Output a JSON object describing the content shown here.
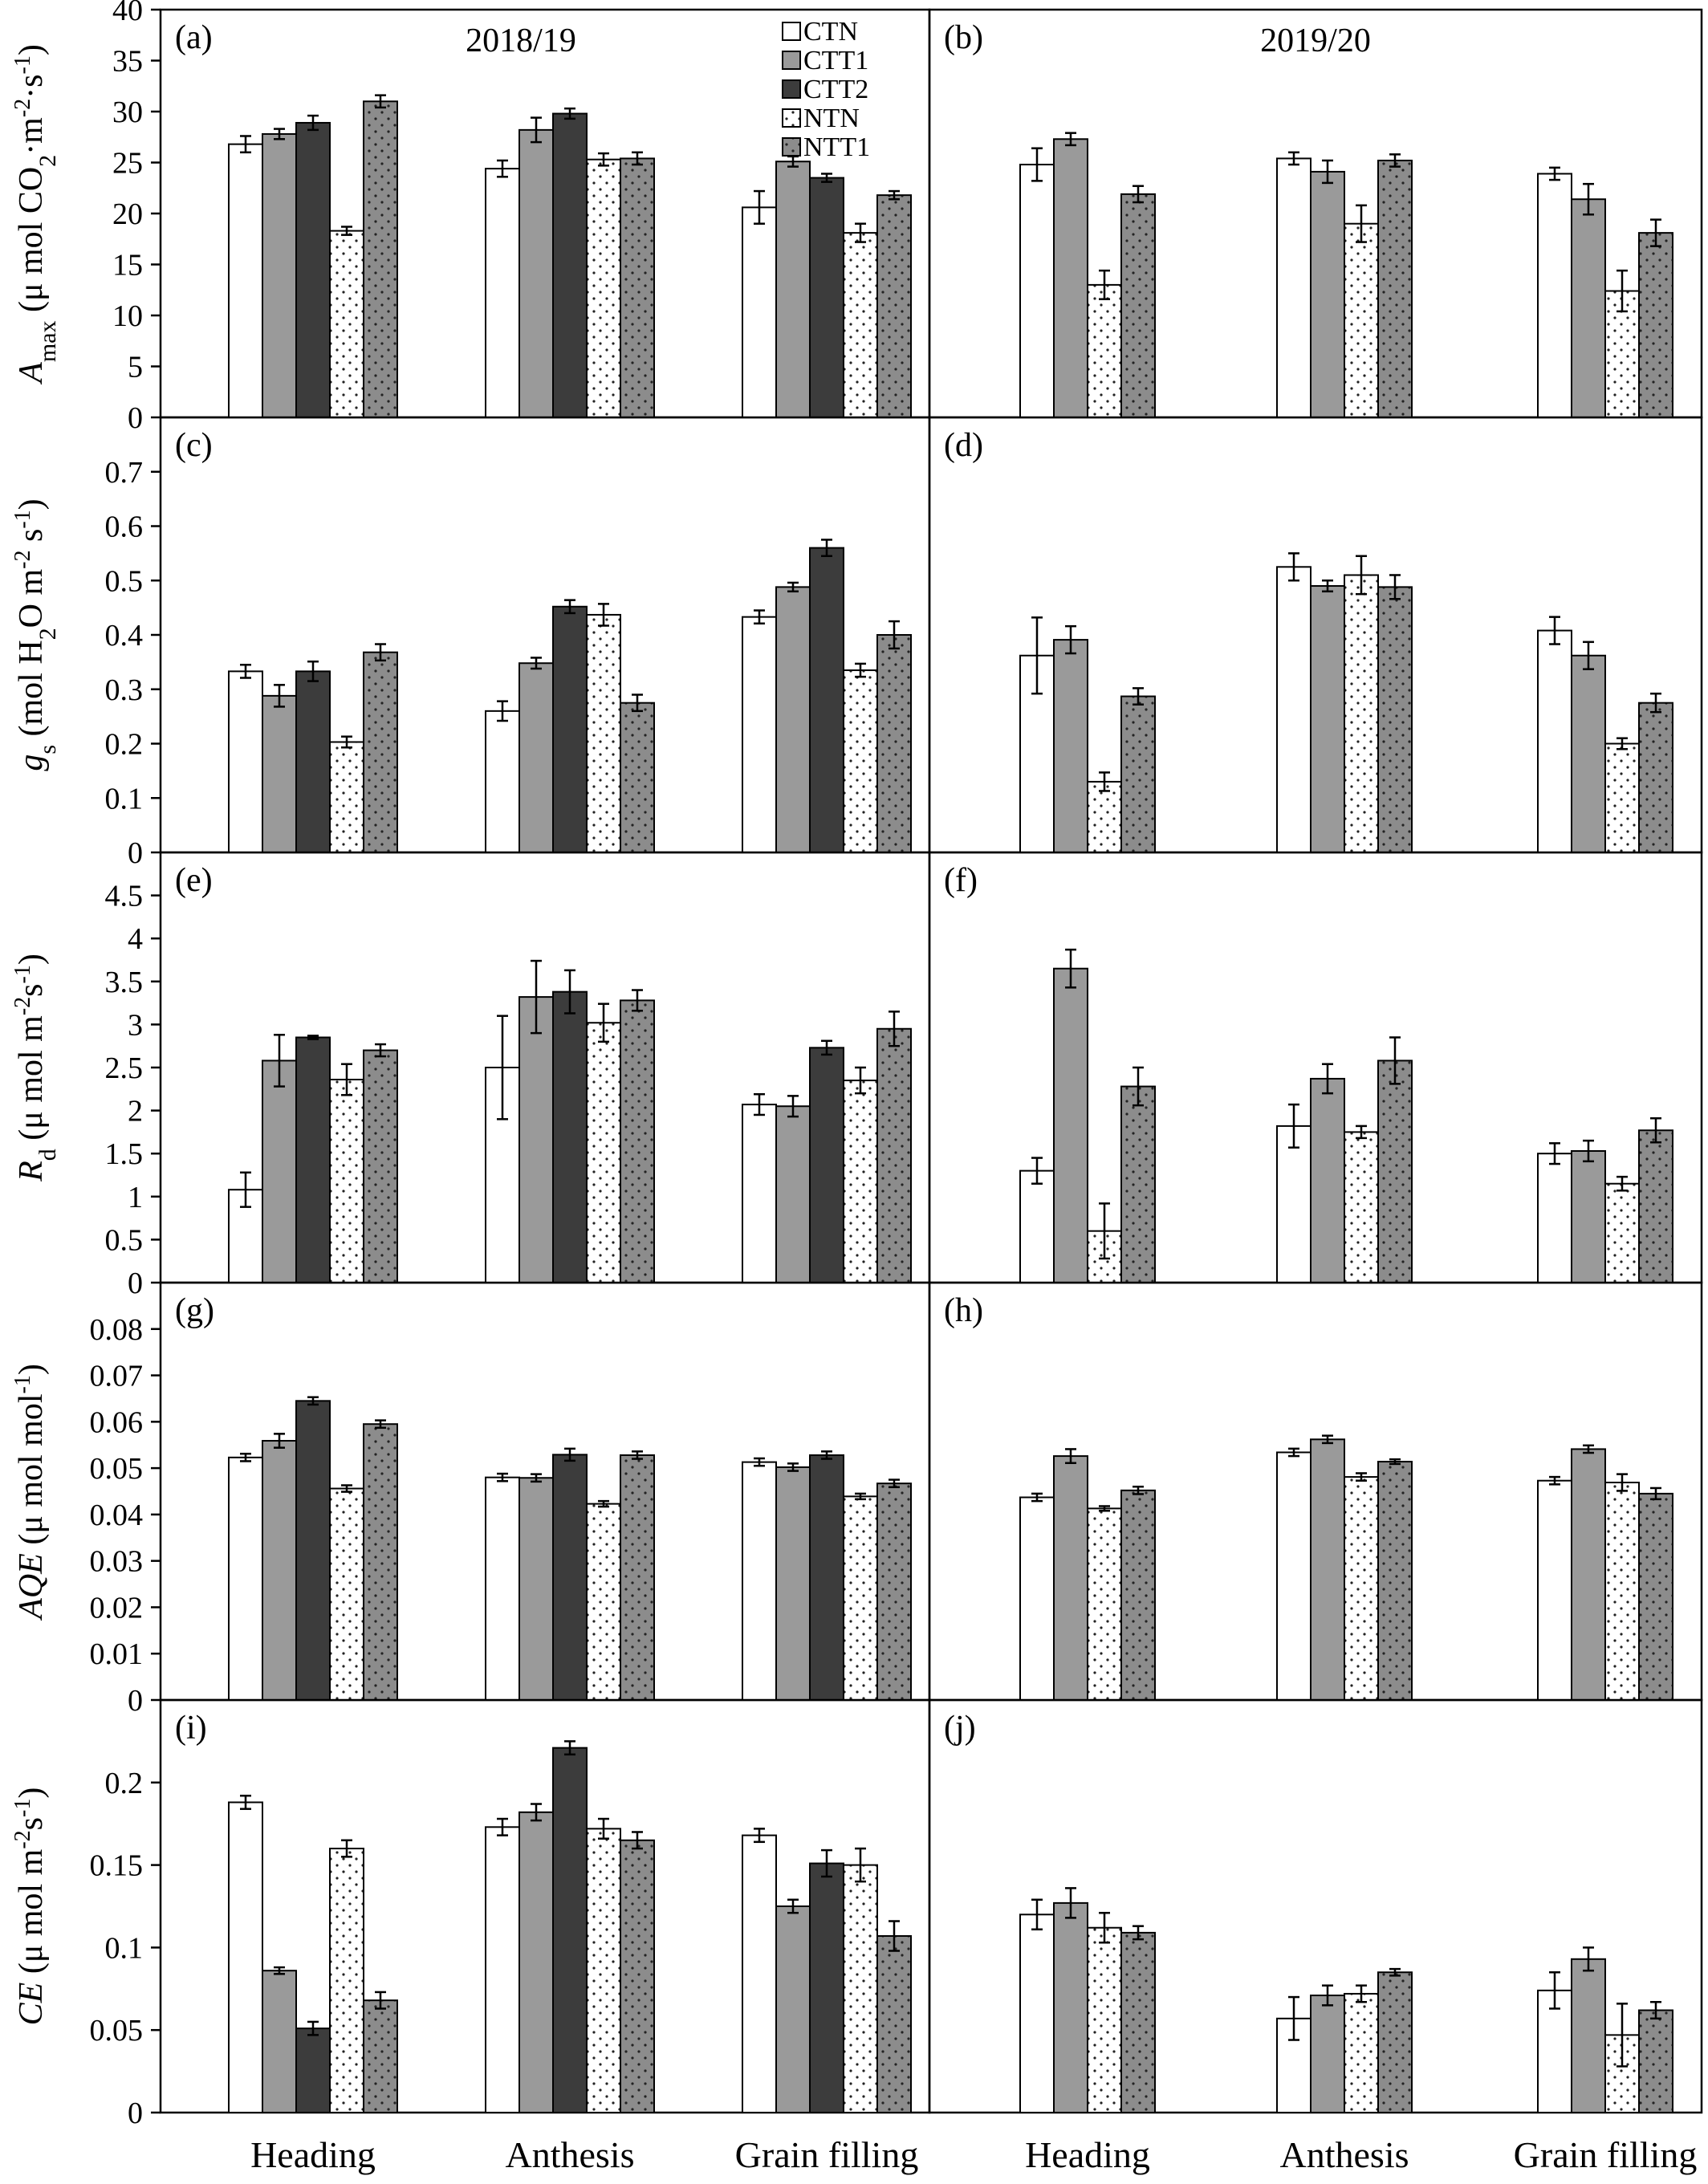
{
  "figure": {
    "categories": [
      "Heading",
      "Anthesis",
      "Grain filling"
    ],
    "legend": [
      "CTN",
      "CTT1",
      "CTT2",
      "NTN",
      "NTT1"
    ],
    "colors": {
      "CTN": "#ffffff",
      "CTT1": "#9a9a9a",
      "CTT2": "#3c3c3c",
      "NTN": "#ffffff",
      "NTT1": "#8c8c8c"
    },
    "seasons": [
      "2018/19",
      "2019/20"
    ]
  },
  "chart_data": [
    {
      "type": "bar",
      "panel": "(a)",
      "title": "2018/19",
      "ylabel": "Amax (μ mol CO2·m-2·s-1)",
      "ylabel_parts": {
        "main": "A",
        "sub": "max",
        "units": " (μ mol CO",
        "units_sub": "2",
        "units2": "·m",
        "units_sup": "-2",
        "units3": "·s",
        "units_sup2": "-1",
        "units4": ")"
      },
      "ylim": [
        0,
        40
      ],
      "yticks": [
        "0",
        "5",
        "10",
        "15",
        "20",
        "25",
        "30",
        "35",
        "40"
      ],
      "categories": [
        "Heading",
        "Anthesis",
        "Grain filling"
      ],
      "series": [
        {
          "name": "CTN",
          "values": [
            26.8,
            24.4,
            20.6
          ],
          "err": [
            0.8,
            0.8,
            1.6
          ]
        },
        {
          "name": "CTT1",
          "values": [
            27.8,
            28.2,
            25.1
          ],
          "err": [
            0.5,
            1.2,
            0.5
          ]
        },
        {
          "name": "CTT2",
          "values": [
            28.9,
            29.8,
            23.5
          ],
          "err": [
            0.7,
            0.5,
            0.4
          ]
        },
        {
          "name": "NTN",
          "values": [
            18.3,
            25.3,
            18.1
          ],
          "err": [
            0.4,
            0.6,
            0.9
          ]
        },
        {
          "name": "NTT1",
          "values": [
            31.0,
            25.4,
            21.8
          ],
          "err": [
            0.6,
            0.6,
            0.4
          ]
        }
      ]
    },
    {
      "type": "bar",
      "panel": "(b)",
      "title": "2019/20",
      "ylim": [
        0,
        40
      ],
      "categories": [
        "Heading",
        "Anthesis",
        "Grain filling"
      ],
      "series": [
        {
          "name": "CTN",
          "values": [
            24.8,
            25.4,
            23.9
          ],
          "err": [
            1.6,
            0.6,
            0.6
          ]
        },
        {
          "name": "CTT1",
          "values": [
            27.3,
            24.1,
            21.4
          ],
          "err": [
            0.6,
            1.1,
            1.5
          ]
        },
        {
          "name": "NTN",
          "values": [
            13.0,
            19.0,
            12.4
          ],
          "err": [
            1.4,
            1.8,
            2.0
          ]
        },
        {
          "name": "NTT1",
          "values": [
            21.9,
            25.2,
            18.1
          ],
          "err": [
            0.8,
            0.6,
            1.3
          ]
        }
      ]
    },
    {
      "type": "bar",
      "panel": "(c)",
      "ylabel": "gs (mol H2O m-2 s-1)",
      "ylabel_parts": {
        "main": "g",
        "sub": "s",
        "units": " (mol H",
        "units_sub": "2",
        "units2": "O m",
        "units_sup": "-2",
        "units3": " s",
        "units_sup2": "-1",
        "units4": ")"
      },
      "ylim": [
        0,
        0.8
      ],
      "yticks": [
        "0",
        "0.1",
        "0.2",
        "0.3",
        "0.4",
        "0.5",
        "0.6",
        "0.7"
      ],
      "categories": [
        "Heading",
        "Anthesis",
        "Grain filling"
      ],
      "series": [
        {
          "name": "CTN",
          "values": [
            0.333,
            0.26,
            0.433
          ],
          "err": [
            0.012,
            0.018,
            0.012
          ]
        },
        {
          "name": "CTT1",
          "values": [
            0.288,
            0.348,
            0.488
          ],
          "err": [
            0.02,
            0.01,
            0.008
          ]
        },
        {
          "name": "CTT2",
          "values": [
            0.333,
            0.452,
            0.56
          ],
          "err": [
            0.018,
            0.012,
            0.015
          ]
        },
        {
          "name": "NTN",
          "values": [
            0.203,
            0.437,
            0.335
          ],
          "err": [
            0.01,
            0.02,
            0.012
          ]
        },
        {
          "name": "NTT1",
          "values": [
            0.368,
            0.275,
            0.4
          ],
          "err": [
            0.015,
            0.015,
            0.025
          ]
        }
      ]
    },
    {
      "type": "bar",
      "panel": "(d)",
      "ylim": [
        0,
        0.8
      ],
      "categories": [
        "Heading",
        "Anthesis",
        "Grain filling"
      ],
      "series": [
        {
          "name": "CTN",
          "values": [
            0.362,
            0.525,
            0.408
          ],
          "err": [
            0.07,
            0.025,
            0.025
          ]
        },
        {
          "name": "CTT1",
          "values": [
            0.391,
            0.49,
            0.362
          ],
          "err": [
            0.025,
            0.01,
            0.025
          ]
        },
        {
          "name": "NTN",
          "values": [
            0.13,
            0.51,
            0.2
          ],
          "err": [
            0.017,
            0.035,
            0.01
          ]
        },
        {
          "name": "NTT1",
          "values": [
            0.287,
            0.488,
            0.275
          ],
          "err": [
            0.015,
            0.022,
            0.017
          ]
        }
      ]
    },
    {
      "type": "bar",
      "panel": "(e)",
      "ylabel": "Rd (μ mol m-2s-1)",
      "ylabel_parts": {
        "main": "R",
        "sub": "d",
        "units": " (μ mol m",
        "units_sub": "",
        "units2": "",
        "units_sup": "-2",
        "units3": "s",
        "units_sup2": "-1",
        "units4": ")"
      },
      "ylim": [
        0,
        5
      ],
      "yticks": [
        "0",
        "0.5",
        "1",
        "1.5",
        "2",
        "2.5",
        "3",
        "3.5",
        "4",
        "4.5"
      ],
      "categories": [
        "Heading",
        "Anthesis",
        "Grain filling"
      ],
      "series": [
        {
          "name": "CTN",
          "values": [
            1.08,
            2.5,
            2.07
          ],
          "err": [
            0.2,
            0.6,
            0.12
          ]
        },
        {
          "name": "CTT1",
          "values": [
            2.58,
            3.32,
            2.05
          ],
          "err": [
            0.3,
            0.42,
            0.12
          ]
        },
        {
          "name": "CTT2",
          "values": [
            2.85,
            3.38,
            2.73
          ],
          "err": [
            0.02,
            0.25,
            0.08
          ]
        },
        {
          "name": "NTN",
          "values": [
            2.36,
            3.02,
            2.35
          ],
          "err": [
            0.18,
            0.22,
            0.15
          ]
        },
        {
          "name": "NTT1",
          "values": [
            2.7,
            3.28,
            2.95
          ],
          "err": [
            0.07,
            0.12,
            0.2
          ]
        }
      ]
    },
    {
      "type": "bar",
      "panel": "(f)",
      "ylim": [
        0,
        5
      ],
      "categories": [
        "Heading",
        "Anthesis",
        "Grain filling"
      ],
      "series": [
        {
          "name": "CTN",
          "values": [
            1.3,
            1.82,
            1.5
          ],
          "err": [
            0.15,
            0.25,
            0.12
          ]
        },
        {
          "name": "CTT1",
          "values": [
            3.65,
            2.37,
            1.53
          ],
          "err": [
            0.22,
            0.17,
            0.12
          ]
        },
        {
          "name": "NTN",
          "values": [
            0.6,
            1.75,
            1.15
          ],
          "err": [
            0.32,
            0.07,
            0.08
          ]
        },
        {
          "name": "NTT1",
          "values": [
            2.28,
            2.58,
            1.77
          ],
          "err": [
            0.22,
            0.27,
            0.14
          ]
        }
      ]
    },
    {
      "type": "bar",
      "panel": "(g)",
      "ylabel": "AQE (μ mol mol-1)",
      "ylabel_parts": {
        "main": "AQE",
        "sub": "",
        "units": " (μ mol mol",
        "units_sub": "",
        "units2": "",
        "units_sup": "-1",
        "units3": "",
        "units_sup2": "",
        "units4": ")"
      },
      "ylim": [
        0,
        0.09
      ],
      "yticks": [
        "",
        "0.01",
        "0.02",
        "0.03",
        "0.04",
        "0.05",
        "0.06",
        "0.07",
        "0.08"
      ],
      "categories": [
        "Heading",
        "Anthesis",
        "Grain filling"
      ],
      "series": [
        {
          "name": "CTN",
          "values": [
            0.0523,
            0.048,
            0.0513
          ],
          "err": [
            0.0008,
            0.0008,
            0.0008
          ]
        },
        {
          "name": "CTT1",
          "values": [
            0.0559,
            0.0479,
            0.0502
          ],
          "err": [
            0.0015,
            0.0008,
            0.0008
          ]
        },
        {
          "name": "CTT2",
          "values": [
            0.0645,
            0.0529,
            0.0528
          ],
          "err": [
            0.0008,
            0.0013,
            0.0008
          ]
        },
        {
          "name": "NTN",
          "values": [
            0.0456,
            0.0423,
            0.0439
          ],
          "err": [
            0.0007,
            0.0006,
            0.0006
          ]
        },
        {
          "name": "NTT1",
          "values": [
            0.0595,
            0.0528,
            0.0467
          ],
          "err": [
            0.0008,
            0.0008,
            0.0008
          ]
        }
      ]
    },
    {
      "type": "bar",
      "panel": "(h)",
      "ylim": [
        0,
        0.09
      ],
      "categories": [
        "Heading",
        "Anthesis",
        "Grain filling"
      ],
      "series": [
        {
          "name": "CTN",
          "values": [
            0.0437,
            0.0534,
            0.0473
          ],
          "err": [
            0.0008,
            0.0008,
            0.0008
          ]
        },
        {
          "name": "CTT1",
          "values": [
            0.0526,
            0.0562,
            0.0541
          ],
          "err": [
            0.0015,
            0.0008,
            0.0008
          ]
        },
        {
          "name": "NTN",
          "values": [
            0.0413,
            0.0481,
            0.0469
          ],
          "err": [
            0.0005,
            0.0008,
            0.0018
          ]
        },
        {
          "name": "NTT1",
          "values": [
            0.0452,
            0.0514,
            0.0445
          ],
          "err": [
            0.0008,
            0.0005,
            0.0012
          ]
        }
      ]
    },
    {
      "type": "bar",
      "panel": "(i)",
      "ylabel": "CE (μ mol m-2s-1)",
      "ylabel_parts": {
        "main": "CE",
        "sub": "",
        "units": " (μ mol m",
        "units_sub": "",
        "units2": "",
        "units_sup": "-2",
        "units3": "s",
        "units_sup2": "-1",
        "units4": ")"
      },
      "ylim": [
        0,
        0.25
      ],
      "yticks": [
        "0",
        "0.05",
        "0.1",
        "0.15",
        "0.2"
      ],
      "categories": [
        "Heading",
        "Anthesis",
        "Grain filling"
      ],
      "series": [
        {
          "name": "CTN",
          "values": [
            0.188,
            0.173,
            0.168
          ],
          "err": [
            0.004,
            0.005,
            0.004
          ]
        },
        {
          "name": "CTT1",
          "values": [
            0.086,
            0.182,
            0.125
          ],
          "err": [
            0.002,
            0.005,
            0.004
          ]
        },
        {
          "name": "CTT2",
          "values": [
            0.051,
            0.221,
            0.151
          ],
          "err": [
            0.004,
            0.004,
            0.008
          ]
        },
        {
          "name": "NTN",
          "values": [
            0.16,
            0.172,
            0.15
          ],
          "err": [
            0.005,
            0.006,
            0.01
          ]
        },
        {
          "name": "NTT1",
          "values": [
            0.068,
            0.165,
            0.107
          ],
          "err": [
            0.005,
            0.005,
            0.009
          ]
        }
      ]
    },
    {
      "type": "bar",
      "panel": "(j)",
      "ylim": [
        0,
        0.25
      ],
      "categories": [
        "Heading",
        "Anthesis",
        "Grain filling"
      ],
      "series": [
        {
          "name": "CTN",
          "values": [
            0.12,
            0.057,
            0.074
          ],
          "err": [
            0.009,
            0.013,
            0.011
          ]
        },
        {
          "name": "CTT1",
          "values": [
            0.127,
            0.071,
            0.093
          ],
          "err": [
            0.009,
            0.006,
            0.007
          ]
        },
        {
          "name": "NTN",
          "values": [
            0.112,
            0.072,
            0.047
          ],
          "err": [
            0.009,
            0.005,
            0.019
          ]
        },
        {
          "name": "NTT1",
          "values": [
            0.109,
            0.085,
            0.062
          ],
          "err": [
            0.004,
            0.002,
            0.005
          ]
        }
      ]
    }
  ]
}
